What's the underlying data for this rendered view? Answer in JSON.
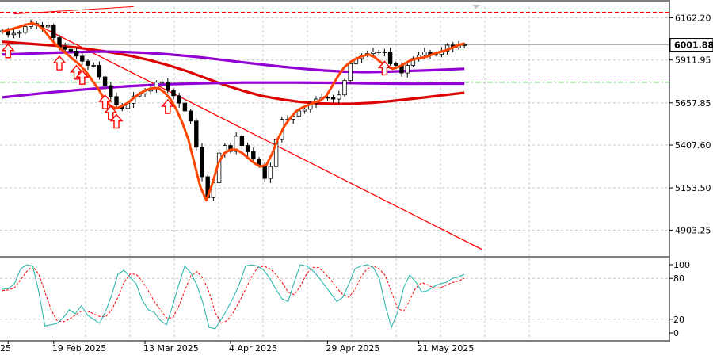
{
  "chart_data": {
    "type": "candlestick",
    "price_axis": {
      "ticks": [
        {
          "label": "6162.20",
          "value": 6162.2
        },
        {
          "label": "5911.95",
          "value": 5911.95
        },
        {
          "label": "5657.85",
          "value": 5657.85
        },
        {
          "label": "5407.60",
          "value": 5407.6
        },
        {
          "label": "5153.50",
          "value": 5153.5
        },
        {
          "label": "4903.25",
          "value": 4903.25
        }
      ],
      "current_price_label": "6001.88",
      "current_price": 6001.88,
      "range": [
        4750,
        6230
      ]
    },
    "oscillator_axis": {
      "ticks": [
        {
          "label": "100",
          "value": 100
        },
        {
          "label": "80",
          "value": 80
        },
        {
          "label": "20",
          "value": 20
        },
        {
          "label": "0",
          "value": 0
        }
      ],
      "range": [
        0,
        100
      ]
    },
    "x_axis": {
      "labels": [
        {
          "label": "25",
          "bar": 1
        },
        {
          "label": "19 Feb 2025",
          "bar": 9
        },
        {
          "label": "13 Mar 2025",
          "bar": 25
        },
        {
          "label": "4 Apr 2025",
          "bar": 40
        },
        {
          "label": "29 Apr 2025",
          "bar": 57
        },
        {
          "label": "21 May 2025",
          "bar": 73
        }
      ]
    },
    "close_levels": [
      6085,
      6062,
      6070,
      6075,
      6110,
      6128,
      6118,
      6108,
      6116,
      6044,
      5990,
      5975,
      5965,
      5935,
      5905,
      5880,
      5880,
      5812,
      5760,
      5695,
      5645,
      5625,
      5655,
      5698,
      5712,
      5728,
      5745,
      5780,
      5782,
      5732,
      5700,
      5656,
      5610,
      5550,
      5395,
      5220,
      5095,
      5185,
      5360,
      5405,
      5370,
      5460,
      5405,
      5368,
      5325,
      5290,
      5210,
      5280,
      5440,
      5560,
      5560,
      5580,
      5610,
      5620,
      5655,
      5680,
      5690,
      5688,
      5680,
      5705,
      5790,
      5890,
      5920,
      5940,
      5950,
      5960,
      5960,
      5960,
      5890,
      5880,
      5835,
      5880,
      5920,
      5940,
      5960,
      5945,
      5945,
      5965,
      6000,
      5985,
      6000,
      6002
    ],
    "lines": [
      {
        "color": "#ff4500",
        "values": [
          6080,
          6090,
          6100,
          6110,
          6122,
          6128,
          6118,
          6085,
          6040,
          6000,
          5970,
          5940,
          5910,
          5880,
          5840,
          5790,
          5740,
          5680,
          5640,
          5625,
          5640,
          5660,
          5690,
          5715,
          5735,
          5745,
          5745,
          5720,
          5680,
          5620,
          5540,
          5440,
          5300,
          5160,
          5080,
          5180,
          5300,
          5360,
          5380,
          5380,
          5360,
          5330,
          5300,
          5280,
          5290,
          5360,
          5450,
          5520,
          5570,
          5610,
          5630,
          5645,
          5660,
          5672,
          5700,
          5760,
          5820,
          5870,
          5900,
          5920,
          5935,
          5945,
          5930,
          5900,
          5880,
          5860,
          5870,
          5890,
          5910,
          5920,
          5925,
          5935,
          5950,
          5960,
          5970,
          5985,
          6000,
          6010
        ]
      },
      {
        "color": "#dd0000",
        "values": [
          6020,
          6012,
          6004,
          5996,
          5986,
          5972,
          5955,
          5935,
          5910,
          5880,
          5845,
          5805,
          5765,
          5730,
          5700,
          5680,
          5665,
          5655,
          5652,
          5653,
          5658,
          5668,
          5680,
          5692,
          5705,
          5718
        ]
      },
      {
        "color": "#9400d3",
        "values": [
          5945,
          5948,
          5953,
          5957,
          5960,
          5962,
          5960,
          5955,
          5948,
          5938,
          5926,
          5912,
          5898,
          5884,
          5871,
          5860,
          5850,
          5843,
          5840,
          5842,
          5846,
          5850,
          5855,
          5860
        ]
      },
      {
        "color": "#9400d3",
        "values": [
          5690,
          5705,
          5720,
          5733,
          5745,
          5755,
          5763,
          5769,
          5773,
          5776,
          5778,
          5778,
          5778,
          5777,
          5776,
          5774,
          5772,
          5771,
          5772,
          5772
        ]
      }
    ],
    "trendline": {
      "color": "#ff0000",
      "from": {
        "bar": 5,
        "value": 6140
      },
      "to": {
        "bar": 84,
        "value": 4790
      }
    },
    "resistance_line": {
      "color": "#ff0000",
      "value": 6195
    },
    "support_line": {
      "color": "#00a000",
      "value": 5780
    },
    "arrow_bars": [
      1,
      10,
      13,
      14,
      18,
      19,
      20,
      29,
      67
    ],
    "oscillator": {
      "fast_color": "#20b2aa",
      "slow_color": "#ff0000",
      "fast": [
        64,
        65,
        72,
        94,
        100,
        98,
        60,
        10,
        12,
        14,
        22,
        34,
        28,
        40,
        26,
        20,
        14,
        32,
        56,
        86,
        92,
        82,
        72,
        48,
        34,
        30,
        18,
        12,
        40,
        70,
        98,
        88,
        70,
        44,
        8,
        6,
        20,
        35,
        52,
        72,
        98,
        100,
        98,
        92,
        80,
        64,
        50,
        46,
        74,
        100,
        98,
        92,
        82,
        70,
        58,
        46,
        52,
        72,
        94,
        98,
        100,
        96,
        80,
        40,
        8,
        30,
        66,
        85,
        75,
        60,
        62,
        68,
        72,
        74,
        80,
        82,
        86
      ],
      "slow": [
        62,
        63,
        66,
        78,
        90,
        98,
        86,
        60,
        34,
        18,
        16,
        20,
        26,
        32,
        32,
        28,
        24,
        24,
        34,
        52,
        74,
        86,
        86,
        76,
        62,
        46,
        34,
        22,
        22,
        38,
        62,
        84,
        90,
        80,
        60,
        30,
        14,
        18,
        30,
        46,
        64,
        82,
        96,
        98,
        94,
        86,
        74,
        60,
        56,
        68,
        86,
        96,
        96,
        88,
        78,
        66,
        56,
        52,
        64,
        82,
        94,
        98,
        94,
        84,
        60,
        36,
        32,
        48,
        66,
        74,
        70,
        66,
        66,
        70,
        74,
        76,
        80
      ]
    }
  }
}
